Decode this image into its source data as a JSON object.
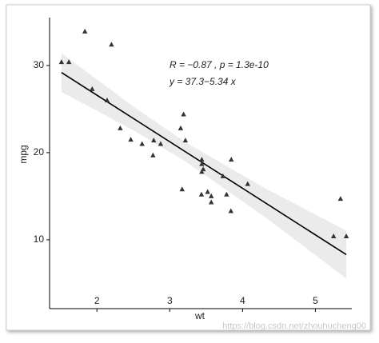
{
  "chart_data": {
    "type": "scatter",
    "x_label": "wt",
    "y_label": "mpg",
    "annotations": [
      "R = −0.87 , p = 1.3e-10",
      "y = 37.3−5.34 x"
    ],
    "watermark": "https://blog.csdn.net/zhouhucheng00",
    "series": [
      {
        "name": "mpg",
        "color": "#333333",
        "x": [
          2.62,
          2.875,
          2.32,
          3.215,
          3.44,
          3.46,
          3.57,
          3.19,
          3.15,
          3.44,
          3.44,
          4.07,
          3.73,
          3.78,
          5.25,
          5.424,
          5.345,
          2.2,
          1.615,
          1.835,
          2.465,
          3.52,
          3.435,
          3.84,
          3.845,
          1.935,
          2.14,
          1.513,
          3.17,
          2.77,
          3.57,
          2.78
        ],
        "values": [
          21.0,
          21.0,
          22.8,
          21.4,
          18.7,
          18.1,
          14.3,
          24.4,
          22.8,
          19.2,
          17.8,
          16.4,
          17.3,
          15.2,
          10.4,
          10.4,
          14.7,
          32.4,
          30.4,
          33.9,
          21.5,
          15.5,
          15.2,
          13.3,
          19.2,
          27.3,
          26.0,
          30.4,
          15.8,
          19.7,
          15.0,
          21.4
        ]
      }
    ],
    "fit": {
      "color": "#000000",
      "x": [
        1.513,
        5.424
      ],
      "values": [
        29.2,
        8.3
      ]
    },
    "band": {
      "color": "#ebebeb",
      "x": [
        1.513,
        2.5,
        3.217,
        4.3,
        5.424
      ],
      "lower": [
        26.97,
        22.56,
        18.99,
        12.66,
        5.55
      ],
      "upper": [
        31.43,
        25.3,
        21.19,
        15.96,
        11.05
      ]
    },
    "xlim": [
      1.35,
      5.5
    ],
    "ylim": [
      2.1,
      35.5
    ],
    "xticks": [
      2,
      3,
      4,
      5
    ],
    "yticks": [
      10,
      20,
      30
    ],
    "grid": false
  }
}
